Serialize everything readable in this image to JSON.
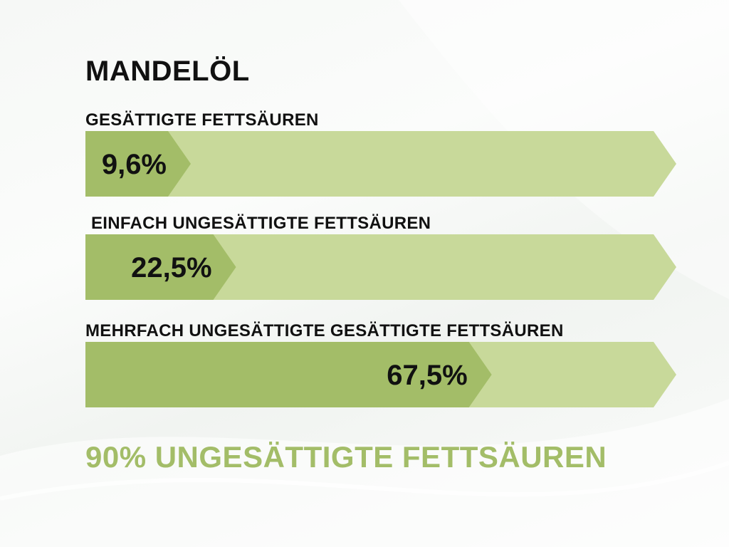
{
  "title": "MANDELÖL",
  "colors": {
    "bar_fill": "#a3bd68",
    "bar_track": "#c8d99a",
    "summary": "#a3bd68",
    "text": "#111111"
  },
  "chart_data": {
    "type": "bar",
    "orientation": "horizontal",
    "ylim": [
      0,
      100
    ],
    "unit": "%",
    "categories": [
      "GESÄTTIGTE FETTSÄUREN",
      "EINFACH UNGESÄTTIGTE FETTSÄUREN",
      "MEHRFACH UNGESÄTTIGTE GESÄTTIGTE FETTSÄUREN"
    ],
    "values": [
      9.6,
      22.5,
      67.5
    ],
    "value_labels": [
      "9,6%",
      "22,5%",
      "67,5%"
    ]
  },
  "summary": "90% UNGESÄTTIGTE FETTSÄUREN"
}
